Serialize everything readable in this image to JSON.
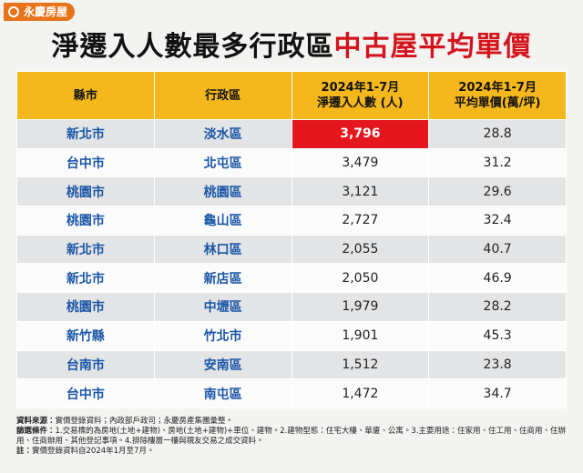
{
  "logo": "永慶房屋",
  "title": {
    "part1": "淨遷入人數最多行政區",
    "part2": "中古屋平均單價"
  },
  "table": {
    "headers": [
      [
        "縣市"
      ],
      [
        "行政區"
      ],
      [
        "2024年1-7月",
        "淨遷入人數 (人)"
      ],
      [
        "2024年1-7月",
        "平均單價(萬/坪)"
      ]
    ],
    "rows": [
      [
        "新北市",
        "淡水區",
        "3,796",
        "28.8"
      ],
      [
        "台中市",
        "北屯區",
        "3,479",
        "31.2"
      ],
      [
        "桃園市",
        "桃園區",
        "3,121",
        "29.6"
      ],
      [
        "桃園市",
        "龜山區",
        "2,727",
        "32.4"
      ],
      [
        "新北市",
        "林口區",
        "2,055",
        "40.7"
      ],
      [
        "新北市",
        "新店區",
        "2,050",
        "46.9"
      ],
      [
        "桃園市",
        "中壢區",
        "1,979",
        "28.2"
      ],
      [
        "新竹縣",
        "竹北市",
        "1,901",
        "45.3"
      ],
      [
        "台南市",
        "安南區",
        "1,512",
        "23.8"
      ],
      [
        "台中市",
        "南屯區",
        "1,472",
        "34.7"
      ]
    ]
  },
  "notes": [
    {
      "label": "資料來源：",
      "text": "實價登錄資料；內政部戶政司；永慶房產集團彙整。"
    },
    {
      "label": "篩選條件：",
      "text": "1.交易標的為房地(土地+建物)、房地(土地+建物)+車位、建物。2.建物型態：住宅大樓、華廈、公寓。3.主要用途：住家用、住工用、住商用、住辦用、住商辦用、其他登記事項。4.排除樓層一樓與親友交易之成交資料。"
    },
    {
      "label": "註：",
      "text": "實價登錄資料自2024年1月至7月。"
    }
  ]
}
